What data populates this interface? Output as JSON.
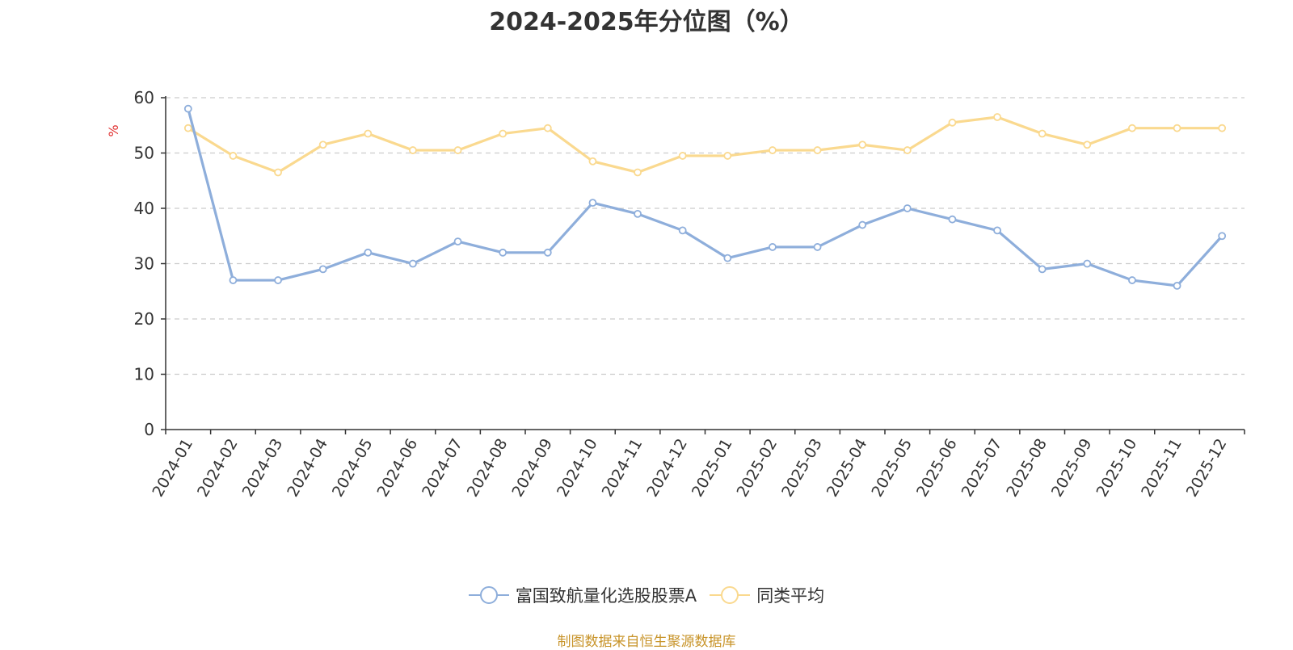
{
  "chart_data": {
    "type": "line",
    "title": "2024-2025年分位图（%）",
    "ylabel": "%",
    "xlabel": "",
    "ylim": [
      0,
      60
    ],
    "yticks": [
      0,
      10,
      20,
      30,
      40,
      50,
      60
    ],
    "grid": true,
    "legend_position": "bottom",
    "categories": [
      "2024-01",
      "2024-02",
      "2024-03",
      "2024-04",
      "2024-05",
      "2024-06",
      "2024-07",
      "2024-08",
      "2024-09",
      "2024-10",
      "2024-11",
      "2024-12",
      "2025-01",
      "2025-02",
      "2025-03",
      "2025-04",
      "2025-05",
      "2025-06",
      "2025-07",
      "2025-08",
      "2025-09",
      "2025-10",
      "2025-11",
      "2025-12"
    ],
    "series": [
      {
        "name": "富国致航量化选股股票A",
        "color": "#8eaedb",
        "values": [
          58,
          27,
          27,
          29,
          32,
          30,
          34,
          32,
          32,
          41,
          39,
          36,
          31,
          33,
          33,
          37,
          40,
          38,
          36,
          29,
          30,
          27,
          26,
          35
        ]
      },
      {
        "name": "同类平均",
        "color": "#fad98f",
        "values": [
          54.5,
          49.5,
          46.5,
          51.5,
          53.5,
          50.5,
          50.5,
          53.5,
          54.5,
          48.5,
          46.5,
          49.5,
          49.5,
          50.5,
          50.5,
          51.5,
          50.5,
          55.5,
          56.5,
          53.5,
          51.5,
          54.5,
          54.5,
          54.5
        ]
      }
    ]
  },
  "source_note": "制图数据来自恒生聚源数据库"
}
